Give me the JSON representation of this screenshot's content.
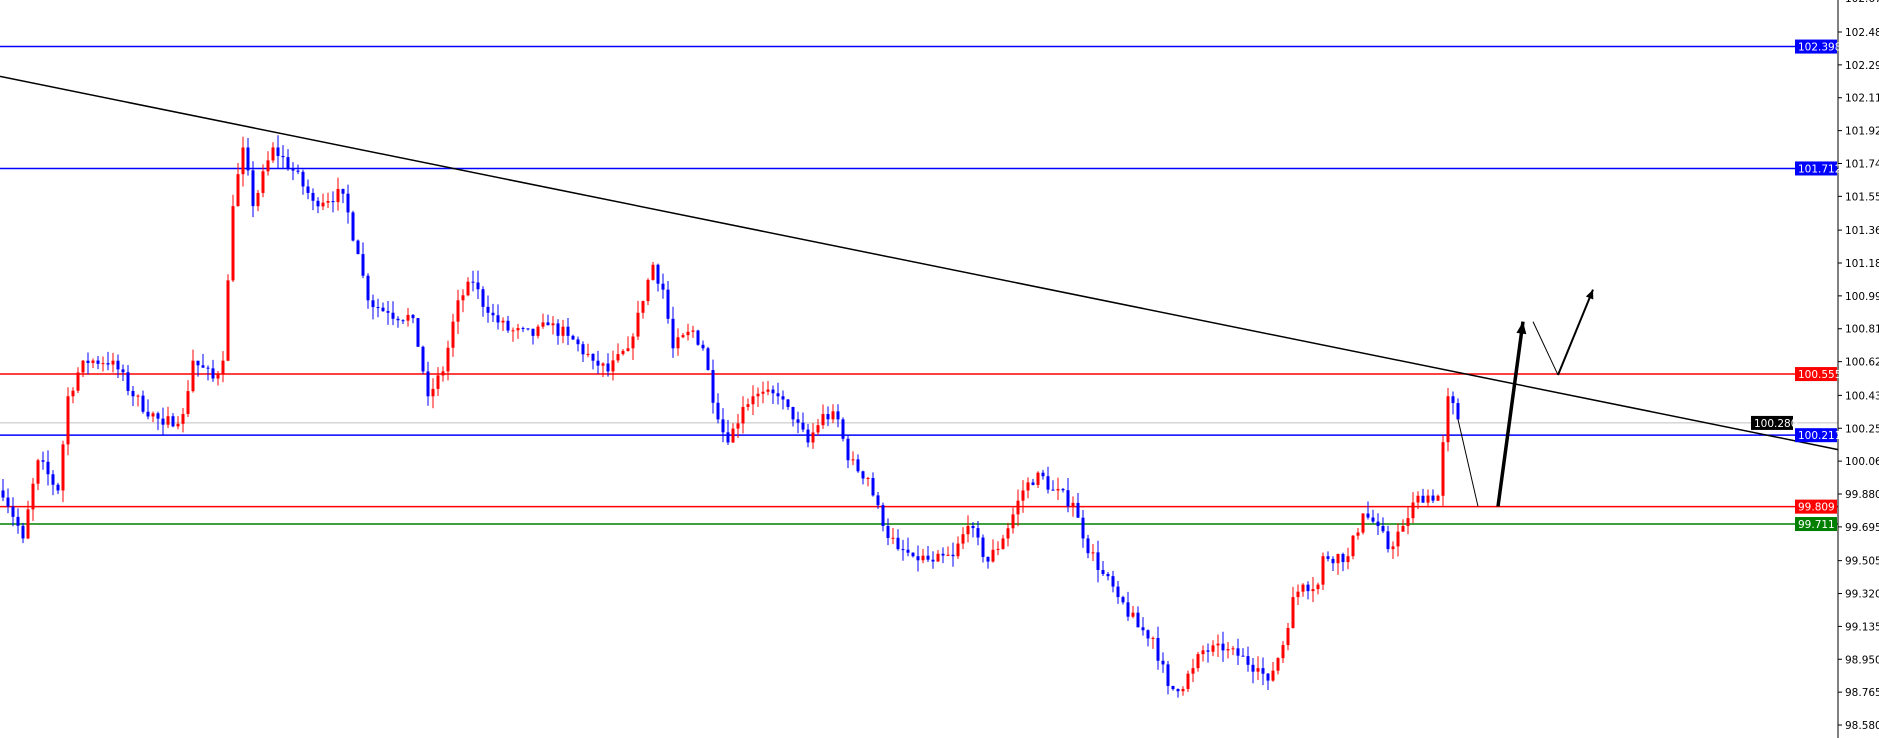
{
  "chart_data": {
    "type": "candlestick",
    "title": "",
    "xlabel": "",
    "ylabel": "",
    "ylim": [
      98.51,
      102.66
    ],
    "grid": false,
    "colors": {
      "up": "#ff0000",
      "down": "#0000ff",
      "background": "#ffffff",
      "axis": "#000000"
    },
    "y_ticks": [
      "102.670",
      "102.480",
      "102.295",
      "102.110",
      "101.925",
      "101.740",
      "101.555",
      "101.365",
      "101.180",
      "100.995",
      "100.810",
      "100.625",
      "100.435",
      "100.250",
      "100.065",
      "99.880",
      "99.695",
      "99.505",
      "99.320",
      "99.135",
      "98.950",
      "98.765",
      "98.580"
    ],
    "price_path": [
      {
        "bar": 0,
        "close": 99.9
      },
      {
        "bar": 4,
        "close": 99.63
      },
      {
        "bar": 7,
        "close": 100.07
      },
      {
        "bar": 11,
        "close": 99.9
      },
      {
        "bar": 13,
        "close": 100.43
      },
      {
        "bar": 16,
        "close": 100.63
      },
      {
        "bar": 22,
        "close": 100.63
      },
      {
        "bar": 26,
        "close": 100.43
      },
      {
        "bar": 32,
        "close": 100.27
      },
      {
        "bar": 36,
        "close": 100.33
      },
      {
        "bar": 38,
        "close": 100.63
      },
      {
        "bar": 42,
        "close": 100.53
      },
      {
        "bar": 44,
        "close": 100.63
      },
      {
        "bar": 46,
        "close": 101.5
      },
      {
        "bar": 48,
        "close": 101.83
      },
      {
        "bar": 50,
        "close": 101.5
      },
      {
        "bar": 54,
        "close": 101.83
      },
      {
        "bar": 58,
        "close": 101.7
      },
      {
        "bar": 62,
        "close": 101.53
      },
      {
        "bar": 68,
        "close": 101.57
      },
      {
        "bar": 71,
        "close": 101.23
      },
      {
        "bar": 73,
        "close": 100.97
      },
      {
        "bar": 77,
        "close": 100.9
      },
      {
        "bar": 82,
        "close": 100.87
      },
      {
        "bar": 85,
        "close": 100.43
      },
      {
        "bar": 88,
        "close": 100.57
      },
      {
        "bar": 91,
        "close": 100.97
      },
      {
        "bar": 94,
        "close": 101.07
      },
      {
        "bar": 97,
        "close": 100.9
      },
      {
        "bar": 101,
        "close": 100.8
      },
      {
        "bar": 106,
        "close": 100.77
      },
      {
        "bar": 109,
        "close": 100.83
      },
      {
        "bar": 113,
        "close": 100.77
      },
      {
        "bar": 118,
        "close": 100.63
      },
      {
        "bar": 121,
        "close": 100.57
      },
      {
        "bar": 125,
        "close": 100.7
      },
      {
        "bar": 127,
        "close": 100.9
      },
      {
        "bar": 130,
        "close": 101.17
      },
      {
        "bar": 132,
        "close": 101.03
      },
      {
        "bar": 134,
        "close": 100.7
      },
      {
        "bar": 138,
        "close": 100.8
      },
      {
        "bar": 140,
        "close": 100.7
      },
      {
        "bar": 143,
        "close": 100.3
      },
      {
        "bar": 145,
        "close": 100.17
      },
      {
        "bar": 148,
        "close": 100.37
      },
      {
        "bar": 150,
        "close": 100.43
      },
      {
        "bar": 155,
        "close": 100.43
      },
      {
        "bar": 158,
        "close": 100.3
      },
      {
        "bar": 161,
        "close": 100.17
      },
      {
        "bar": 164,
        "close": 100.33
      },
      {
        "bar": 167,
        "close": 100.3
      },
      {
        "bar": 169,
        "close": 100.07
      },
      {
        "bar": 173,
        "close": 99.97
      },
      {
        "bar": 176,
        "close": 99.7
      },
      {
        "bar": 179,
        "close": 99.57
      },
      {
        "bar": 182,
        "close": 99.53
      },
      {
        "bar": 186,
        "close": 99.5
      },
      {
        "bar": 190,
        "close": 99.53
      },
      {
        "bar": 193,
        "close": 99.7
      },
      {
        "bar": 197,
        "close": 99.5
      },
      {
        "bar": 200,
        "close": 99.63
      },
      {
        "bar": 204,
        "close": 99.9
      },
      {
        "bar": 207,
        "close": 100.0
      },
      {
        "bar": 210,
        "close": 99.9
      },
      {
        "bar": 214,
        "close": 99.83
      },
      {
        "bar": 216,
        "close": 99.63
      },
      {
        "bar": 220,
        "close": 99.43
      },
      {
        "bar": 223,
        "close": 99.3
      },
      {
        "bar": 227,
        "close": 99.13
      },
      {
        "bar": 230,
        "close": 99.07
      },
      {
        "bar": 233,
        "close": 98.8
      },
      {
        "bar": 235,
        "close": 98.77
      },
      {
        "bar": 238,
        "close": 98.9
      },
      {
        "bar": 240,
        "close": 99.0
      },
      {
        "bar": 244,
        "close": 99.0
      },
      {
        "bar": 247,
        "close": 98.97
      },
      {
        "bar": 251,
        "close": 98.9
      },
      {
        "bar": 253,
        "close": 98.83
      },
      {
        "bar": 256,
        "close": 99.03
      },
      {
        "bar": 258,
        "close": 99.3
      },
      {
        "bar": 260,
        "close": 99.37
      },
      {
        "bar": 263,
        "close": 99.37
      },
      {
        "bar": 264,
        "close": 99.53
      },
      {
        "bar": 269,
        "close": 99.53
      },
      {
        "bar": 272,
        "close": 99.77
      },
      {
        "bar": 275,
        "close": 99.7
      },
      {
        "bar": 277,
        "close": 99.57
      },
      {
        "bar": 280,
        "close": 99.7
      },
      {
        "bar": 283,
        "close": 99.87
      },
      {
        "bar": 287,
        "close": 99.87
      },
      {
        "bar": 289,
        "close": 100.43
      },
      {
        "bar": 291,
        "close": 100.3
      }
    ],
    "horizontal_levels": [
      {
        "price": "102.398",
        "color": "#0000ff"
      },
      {
        "price": "101.712",
        "color": "#0000ff"
      },
      {
        "price": "100.555",
        "color": "#ff0000"
      },
      {
        "price": "100.211",
        "color": "#0000ff"
      },
      {
        "price": "99.809",
        "color": "#ff0000"
      },
      {
        "price": "99.711",
        "color": "#008000"
      }
    ],
    "current_price": {
      "price": "100.280",
      "color": "#000000"
    },
    "trendline": {
      "start_price": 102.23,
      "end_price": 100.13,
      "color": "#000000"
    },
    "projection_arrows": [
      {
        "from_bar": 291,
        "from": 100.3,
        "to_bar": 295,
        "to": 99.81,
        "style": "thin"
      },
      {
        "from_bar": 299,
        "from": 99.81,
        "to_bar": 304,
        "to": 100.85,
        "style": "thick-arrow"
      },
      {
        "from_bar": 306,
        "from": 100.85,
        "to_bar": 311,
        "to": 100.55,
        "style": "thin"
      },
      {
        "from_bar": 311,
        "from": 100.55,
        "to_bar": 318,
        "to": 101.03,
        "style": "arrow"
      }
    ]
  }
}
